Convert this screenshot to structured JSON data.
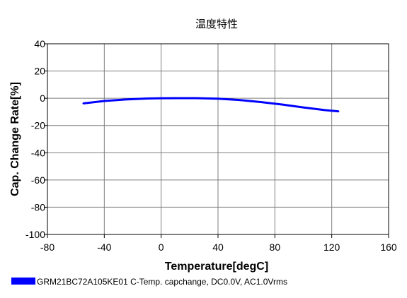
{
  "chart_data": {
    "type": "line",
    "title": "温度特性",
    "xlabel": "Temperature[degC]",
    "ylabel": "Cap. Change Rate[%]",
    "xlim": [
      -80,
      160
    ],
    "ylim": [
      -100,
      40
    ],
    "xticks": [
      -80,
      -40,
      0,
      40,
      80,
      120,
      160
    ],
    "yticks": [
      40,
      20,
      0,
      -20,
      -40,
      -60,
      -80,
      -100
    ],
    "grid": true,
    "legend_position": "bottom-left",
    "series": [
      {
        "name": "GRM21BC72A105KE01 C-Temp. capchange, DC0.0V, AC1.0Vrms",
        "color": "#0000ff",
        "x": [
          -55,
          -40,
          -25,
          -10,
          0,
          10,
          25,
          40,
          55,
          70,
          85,
          100,
          115,
          125
        ],
        "y": [
          -3.8,
          -2.0,
          -0.9,
          -0.2,
          0.0,
          0.1,
          0.1,
          -0.3,
          -1.3,
          -2.8,
          -4.6,
          -6.7,
          -8.7,
          -9.6
        ]
      }
    ]
  }
}
